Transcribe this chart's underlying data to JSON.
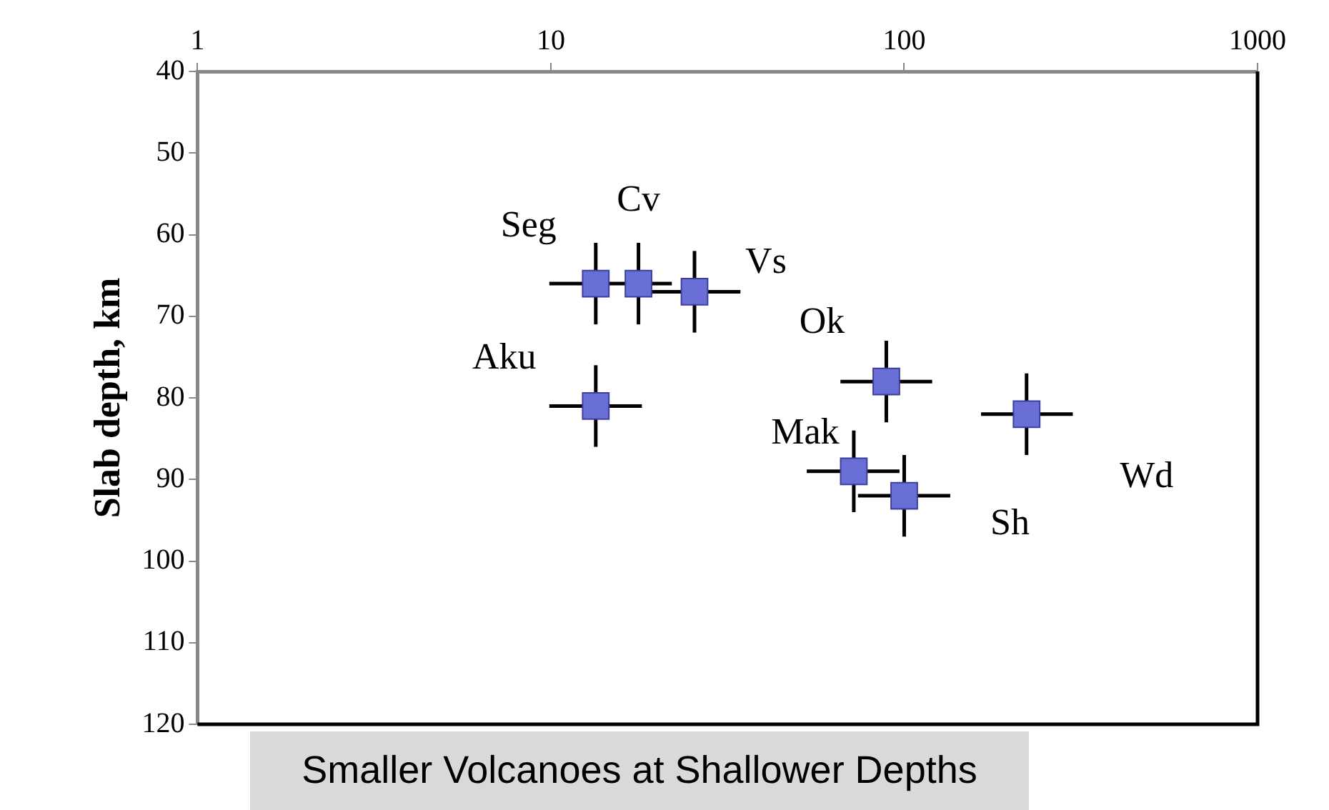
{
  "chart_data": {
    "type": "scatter",
    "ylabel": "Slab depth, km",
    "log": "x",
    "marker": "square",
    "x": [
      13.4,
      17.7,
      25.5,
      13.4,
      89,
      222,
      72,
      100
    ],
    "series": [
      {
        "color": "#6a6fd8",
        "values": [
          66,
          66,
          67,
          81,
          78,
          82,
          89,
          92
        ],
        "xerrors": [
          [
            9.9,
            22
          ],
          null,
          [
            18.9,
            34.4
          ],
          [
            9.9,
            18.1
          ],
          [
            66,
            120
          ],
          [
            165,
            300
          ],
          [
            53,
            97
          ],
          [
            74,
            135
          ]
        ],
        "errors": [
          5,
          5,
          5,
          5,
          5,
          5,
          5,
          5
        ]
      }
    ],
    "xlim": [
      1,
      1000
    ],
    "xticks": [
      1,
      10,
      100,
      1000
    ],
    "ylim": [
      120,
      40
    ],
    "yticks": [
      40,
      50,
      60,
      70,
      80,
      90,
      100,
      110,
      120
    ],
    "annotations": [
      {
        "text": "Seg",
        "x": 13.4,
        "y": 66
      },
      {
        "text": "Cv",
        "x": 17.7,
        "y": 66
      },
      {
        "text": "Vs",
        "x": 25.5,
        "y": 67
      },
      {
        "text": "Aku",
        "x": 13.4,
        "y": 81
      },
      {
        "text": "Ok",
        "x": 89,
        "y": 78
      },
      {
        "text": "Wd",
        "x": 222,
        "y": 82
      },
      {
        "text": "Mak",
        "x": 72,
        "y": 89
      },
      {
        "text": "Sh",
        "x": 100,
        "y": 92
      },
      "Smaller Volcanoes at Shallower Depths"
    ]
  }
}
